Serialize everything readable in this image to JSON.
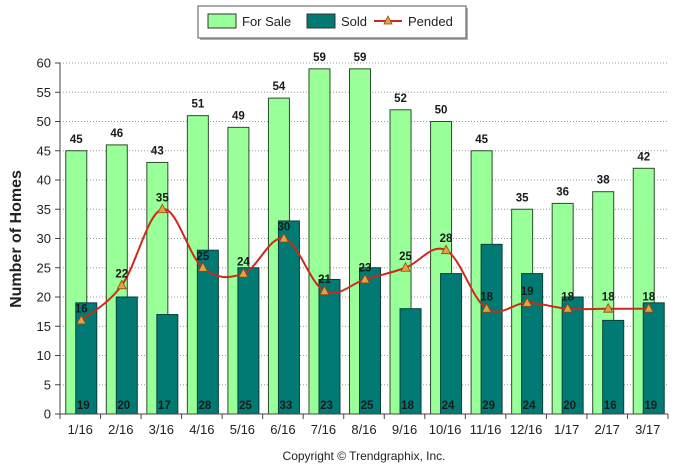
{
  "chart_data": {
    "type": "bar",
    "title": "",
    "xlabel": "",
    "ylabel": "Number of Homes",
    "ylim": [
      0,
      60
    ],
    "yticks": [
      0,
      5,
      10,
      15,
      20,
      25,
      30,
      35,
      40,
      45,
      50,
      55,
      60
    ],
    "grid": true,
    "legend_position": "top-center",
    "categories": [
      "1/16",
      "2/16",
      "3/16",
      "4/16",
      "5/16",
      "6/16",
      "7/16",
      "8/16",
      "9/16",
      "10/16",
      "11/16",
      "12/16",
      "1/17",
      "2/17",
      "3/17"
    ],
    "series": [
      {
        "name": "For Sale",
        "type": "bar",
        "color": "#99ff99",
        "values": [
          45,
          46,
          43,
          51,
          49,
          54,
          59,
          59,
          52,
          50,
          45,
          35,
          36,
          38,
          42
        ]
      },
      {
        "name": "Sold",
        "type": "bar",
        "color": "#007a73",
        "values": [
          19,
          20,
          17,
          28,
          25,
          33,
          23,
          25,
          18,
          24,
          29,
          24,
          20,
          16,
          19
        ]
      },
      {
        "name": "Pended",
        "type": "line",
        "color": "#cc2a1c",
        "marker_color": "#e8a040",
        "values": [
          16,
          22,
          35,
          25,
          24,
          30,
          21,
          23,
          25,
          28,
          18,
          19,
          18,
          18,
          18
        ]
      }
    ],
    "footer": "Copyright © Trendgraphix, Inc."
  }
}
